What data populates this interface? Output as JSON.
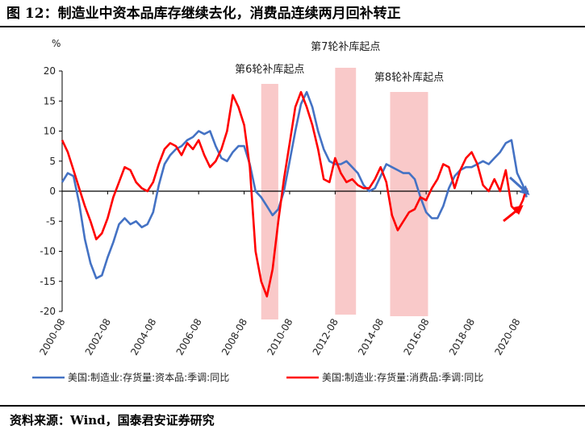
{
  "figure": {
    "title": "图 12：制造业中资本品库存继续去化，消费品连续两月回补转正",
    "source": "资料来源：Wind，国泰君安证券研究"
  },
  "chart_data": {
    "type": "line",
    "ylabel": "%",
    "ylim": [
      -20,
      20
    ],
    "yticks": [
      20,
      15,
      10,
      5,
      0,
      -5,
      -10,
      -15,
      -20
    ],
    "xlim": [
      "2000-08",
      "2021-02"
    ],
    "xticks": [
      "2000-08",
      "2002-08",
      "2004-08",
      "2006-08",
      "2008-08",
      "2010-08",
      "2012-08",
      "2014-08",
      "2016-08",
      "2018-08",
      "2020-08"
    ],
    "grid": false,
    "legend_position": "bottom",
    "shaded_periods": [
      {
        "label": "第6轮补库起点",
        "start": "2009-05",
        "end": "2010-02"
      },
      {
        "label": "第7轮补库起点",
        "start": "2012-08",
        "end": "2013-07"
      },
      {
        "label": "第8轮补库起点",
        "start": "2015-01",
        "end": "2016-09"
      }
    ],
    "series": [
      {
        "name": "美国:制造业:存货量:资本品:季调:同比",
        "color": "#4472C4",
        "points": [
          [
            "2000-08",
            1.5
          ],
          [
            "2000-11",
            3.0
          ],
          [
            "2001-02",
            2.5
          ],
          [
            "2001-05",
            -2.0
          ],
          [
            "2001-08",
            -8.0
          ],
          [
            "2001-11",
            -12.0
          ],
          [
            "2002-02",
            -14.5
          ],
          [
            "2002-05",
            -14.0
          ],
          [
            "2002-08",
            -11.0
          ],
          [
            "2002-11",
            -8.5
          ],
          [
            "2003-02",
            -5.5
          ],
          [
            "2003-05",
            -4.5
          ],
          [
            "2003-08",
            -5.5
          ],
          [
            "2003-11",
            -5.0
          ],
          [
            "2004-02",
            -6.0
          ],
          [
            "2004-05",
            -5.5
          ],
          [
            "2004-08",
            -3.5
          ],
          [
            "2004-11",
            1.0
          ],
          [
            "2005-02",
            4.5
          ],
          [
            "2005-05",
            6.0
          ],
          [
            "2005-08",
            7.0
          ],
          [
            "2005-11",
            7.5
          ],
          [
            "2006-02",
            8.5
          ],
          [
            "2006-05",
            9.0
          ],
          [
            "2006-08",
            10.0
          ],
          [
            "2006-11",
            9.5
          ],
          [
            "2007-02",
            10.0
          ],
          [
            "2007-05",
            7.5
          ],
          [
            "2007-08",
            5.5
          ],
          [
            "2007-11",
            5.0
          ],
          [
            "2008-02",
            6.5
          ],
          [
            "2008-05",
            7.5
          ],
          [
            "2008-08",
            7.5
          ],
          [
            "2008-11",
            4.5
          ],
          [
            "2009-02",
            0.0
          ],
          [
            "2009-05",
            -1.0
          ],
          [
            "2009-08",
            -2.5
          ],
          [
            "2009-11",
            -4.0
          ],
          [
            "2010-02",
            -3.0
          ],
          [
            "2010-05",
            0.0
          ],
          [
            "2010-08",
            5.0
          ],
          [
            "2010-11",
            10.0
          ],
          [
            "2011-02",
            14.5
          ],
          [
            "2011-05",
            16.5
          ],
          [
            "2011-08",
            14.0
          ],
          [
            "2011-11",
            10.0
          ],
          [
            "2012-02",
            7.0
          ],
          [
            "2012-05",
            5.0
          ],
          [
            "2012-08",
            4.5
          ],
          [
            "2012-11",
            4.5
          ],
          [
            "2013-02",
            5.0
          ],
          [
            "2013-05",
            4.0
          ],
          [
            "2013-08",
            3.0
          ],
          [
            "2013-11",
            1.0
          ],
          [
            "2014-02",
            0.0
          ],
          [
            "2014-05",
            0.5
          ],
          [
            "2014-08",
            2.5
          ],
          [
            "2014-11",
            4.5
          ],
          [
            "2015-02",
            4.0
          ],
          [
            "2015-05",
            3.5
          ],
          [
            "2015-08",
            3.0
          ],
          [
            "2015-11",
            3.0
          ],
          [
            "2016-02",
            2.0
          ],
          [
            "2016-05",
            -1.0
          ],
          [
            "2016-08",
            -3.5
          ],
          [
            "2016-11",
            -4.5
          ],
          [
            "2017-02",
            -4.5
          ],
          [
            "2017-05",
            -2.5
          ],
          [
            "2017-08",
            0.5
          ],
          [
            "2017-11",
            2.5
          ],
          [
            "2018-02",
            3.5
          ],
          [
            "2018-05",
            4.0
          ],
          [
            "2018-08",
            4.0
          ],
          [
            "2018-11",
            4.5
          ],
          [
            "2019-02",
            5.0
          ],
          [
            "2019-05",
            4.5
          ],
          [
            "2019-08",
            5.5
          ],
          [
            "2019-11",
            6.5
          ],
          [
            "2020-02",
            8.0
          ],
          [
            "2020-05",
            8.5
          ],
          [
            "2020-08",
            3.0
          ],
          [
            "2020-11",
            1.0
          ],
          [
            "2021-01",
            -1.0
          ]
        ]
      },
      {
        "name": "美国:制造业:存货量:消费品:季调:同比",
        "color": "#FF0000",
        "points": [
          [
            "2000-08",
            8.5
          ],
          [
            "2000-11",
            6.5
          ],
          [
            "2001-02",
            3.5
          ],
          [
            "2001-05",
            0.5
          ],
          [
            "2001-08",
            -2.5
          ],
          [
            "2001-11",
            -5.0
          ],
          [
            "2002-02",
            -8.0
          ],
          [
            "2002-05",
            -7.0
          ],
          [
            "2002-08",
            -4.5
          ],
          [
            "2002-11",
            -1.0
          ],
          [
            "2003-02",
            1.5
          ],
          [
            "2003-05",
            4.0
          ],
          [
            "2003-08",
            3.5
          ],
          [
            "2003-11",
            1.5
          ],
          [
            "2004-02",
            0.5
          ],
          [
            "2004-05",
            0.0
          ],
          [
            "2004-08",
            1.5
          ],
          [
            "2004-11",
            4.5
          ],
          [
            "2005-02",
            7.0
          ],
          [
            "2005-05",
            8.0
          ],
          [
            "2005-08",
            7.5
          ],
          [
            "2005-11",
            6.0
          ],
          [
            "2006-02",
            8.0
          ],
          [
            "2006-05",
            7.0
          ],
          [
            "2006-08",
            8.5
          ],
          [
            "2006-11",
            6.0
          ],
          [
            "2007-02",
            4.0
          ],
          [
            "2007-05",
            5.0
          ],
          [
            "2007-08",
            7.0
          ],
          [
            "2007-11",
            10.0
          ],
          [
            "2008-02",
            16.0
          ],
          [
            "2008-05",
            14.0
          ],
          [
            "2008-08",
            11.0
          ],
          [
            "2008-11",
            4.0
          ],
          [
            "2009-02",
            -10.0
          ],
          [
            "2009-05",
            -15.0
          ],
          [
            "2009-08",
            -17.5
          ],
          [
            "2009-11",
            -13.0
          ],
          [
            "2010-02",
            -5.0
          ],
          [
            "2010-05",
            2.0
          ],
          [
            "2010-08",
            8.0
          ],
          [
            "2010-11",
            14.0
          ],
          [
            "2011-02",
            16.5
          ],
          [
            "2011-05",
            14.0
          ],
          [
            "2011-08",
            11.0
          ],
          [
            "2011-11",
            7.0
          ],
          [
            "2012-02",
            2.0
          ],
          [
            "2012-05",
            1.5
          ],
          [
            "2012-08",
            5.5
          ],
          [
            "2012-11",
            3.0
          ],
          [
            "2013-02",
            1.5
          ],
          [
            "2013-05",
            2.0
          ],
          [
            "2013-08",
            1.0
          ],
          [
            "2013-11",
            0.5
          ],
          [
            "2014-02",
            0.5
          ],
          [
            "2014-05",
            2.0
          ],
          [
            "2014-08",
            4.0
          ],
          [
            "2014-11",
            1.5
          ],
          [
            "2015-02",
            -4.0
          ],
          [
            "2015-05",
            -6.5
          ],
          [
            "2015-08",
            -5.0
          ],
          [
            "2015-11",
            -3.5
          ],
          [
            "2016-02",
            -3.0
          ],
          [
            "2016-05",
            -1.0
          ],
          [
            "2016-08",
            -1.5
          ],
          [
            "2016-11",
            0.5
          ],
          [
            "2017-02",
            2.0
          ],
          [
            "2017-05",
            4.5
          ],
          [
            "2017-08",
            4.0
          ],
          [
            "2017-11",
            0.5
          ],
          [
            "2018-02",
            3.5
          ],
          [
            "2018-05",
            5.5
          ],
          [
            "2018-08",
            6.5
          ],
          [
            "2018-11",
            4.5
          ],
          [
            "2019-02",
            1.0
          ],
          [
            "2019-05",
            0.0
          ],
          [
            "2019-08",
            2.0
          ],
          [
            "2019-11",
            0.0
          ],
          [
            "2020-02",
            3.5
          ],
          [
            "2020-05",
            -2.5
          ],
          [
            "2020-08",
            -3.5
          ],
          [
            "2020-11",
            -1.5
          ],
          [
            "2021-01",
            0.5
          ]
        ]
      }
    ]
  }
}
